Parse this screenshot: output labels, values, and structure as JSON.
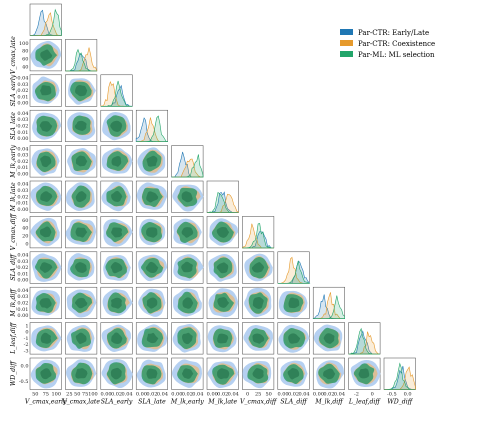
{
  "chart_data": {
    "type": "pairplot",
    "variables": [
      {
        "label": "V_cmax,early",
        "ticks": [
          "50",
          "75",
          "100"
        ],
        "range": [
          35,
          115
        ]
      },
      {
        "label": "V_cmax,late",
        "ticks": [
          "25",
          "50",
          "75",
          "100"
        ],
        "range": [
          15,
          115
        ]
      },
      {
        "label": "SLA_early",
        "ticks": [
          "0.00",
          "0.02",
          "0.04"
        ],
        "range": [
          -0.005,
          0.05
        ]
      },
      {
        "label": "SLA_late",
        "ticks": [
          "0.00",
          "0.02",
          "0.04"
        ],
        "range": [
          -0.005,
          0.05
        ]
      },
      {
        "label": "M_lk,early",
        "ticks": [
          "0.00",
          "0.02",
          "0.04"
        ],
        "range": [
          -0.005,
          0.05
        ]
      },
      {
        "label": "M_lk,late",
        "ticks": [
          "0.00",
          "0.02",
          "0.04"
        ],
        "range": [
          -0.005,
          0.05
        ]
      },
      {
        "label": "V_cmax,diff",
        "ticks": [
          "0",
          "25",
          "50"
        ],
        "range": [
          -20,
          65
        ]
      },
      {
        "label": "SLA_diff",
        "ticks": [
          "0.00",
          "0.02",
          "0.04"
        ],
        "range": [
          -0.005,
          0.05
        ]
      },
      {
        "label": "M_lk,diff",
        "ticks": [
          "0.00",
          "0.02",
          "0.04"
        ],
        "range": [
          -0.005,
          0.05
        ]
      },
      {
        "label": "L_leaf,diff",
        "ticks": [
          "-2",
          "0"
        ],
        "range": [
          -3,
          1
        ]
      },
      {
        "label": "WD_diff",
        "ticks": [
          "-0.5",
          "0.0"
        ],
        "range": [
          -1,
          0.2
        ]
      }
    ],
    "row_ticks": [
      null,
      [
        "40",
        "60",
        "80",
        "100"
      ],
      [
        "0.00",
        "0.01",
        "0.02",
        "0.03",
        "0.04"
      ],
      [
        "0.00",
        "0.01",
        "0.02",
        "0.03",
        "0.04"
      ],
      [
        "0.00",
        "0.01",
        "0.02",
        "0.03",
        "0.04"
      ],
      [
        "0.00",
        "0.01",
        "0.02",
        "0.03",
        "0.04"
      ],
      [
        "0",
        "20",
        "40",
        "60"
      ],
      [
        "0.00",
        "0.01",
        "0.02",
        "0.03",
        "0.04"
      ],
      [
        "0.00",
        "0.01",
        "0.02",
        "0.03",
        "0.04"
      ],
      [
        "-3",
        "-2",
        "-1",
        "0",
        "1"
      ],
      [
        "-0.5",
        "0.0"
      ]
    ],
    "series": [
      {
        "name": "Par-CTR: Early/Late",
        "color": "#1f77b4",
        "fill": "#a8c8ee"
      },
      {
        "name": "Par-CTR: Coexistence",
        "color": "#e69a2c",
        "fill": "#e8b878"
      },
      {
        "name": "Par-ML: ML selection",
        "color": "#22a56a",
        "fill": "#2f9a6a"
      }
    ],
    "legend": "top-right",
    "notes": "Lower-triangle pairwise KDE density plots; diagonal shows marginal density curves for each of three parameter sets."
  }
}
